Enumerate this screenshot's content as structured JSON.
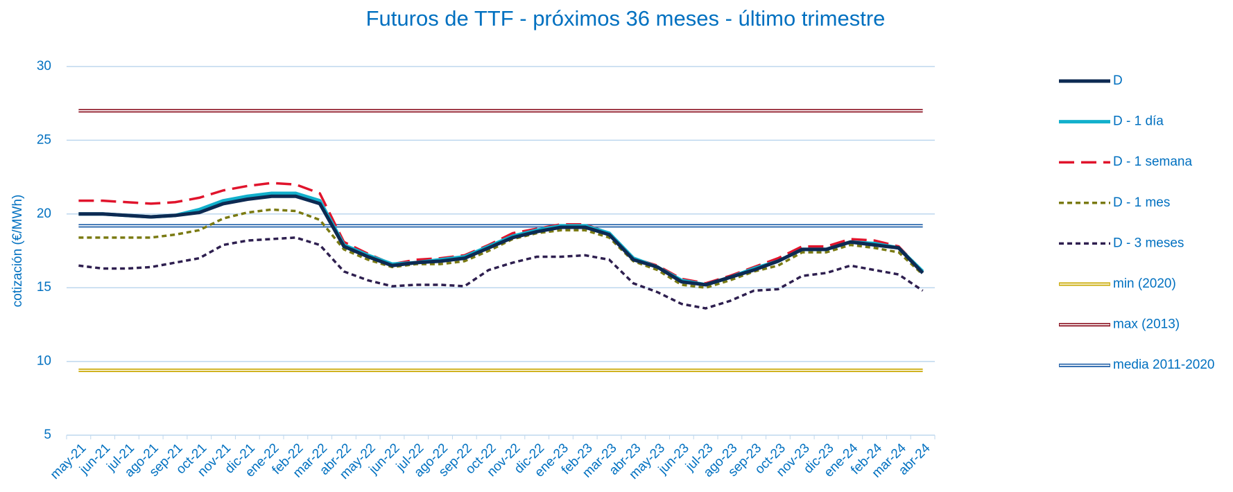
{
  "chart_data": {
    "type": "line",
    "title": "Futuros de TTF - próximos 36 meses - último trimestre",
    "y_label": "cotización (€/MWh)",
    "categories": [
      "may-21",
      "jun-21",
      "jul-21",
      "ago-21",
      "sep-21",
      "oct-21",
      "nov-21",
      "dic-21",
      "ene-22",
      "feb-22",
      "mar-22",
      "abr-22",
      "may-22",
      "jun-22",
      "jul-22",
      "ago-22",
      "sep-22",
      "oct-22",
      "nov-22",
      "dic-22",
      "ene-23",
      "feb-23",
      "mar-23",
      "abr-23",
      "may-23",
      "jun-23",
      "jul-23",
      "ago-23",
      "sep-23",
      "oct-23",
      "nov-23",
      "dic-23",
      "ene-24",
      "feb-24",
      "mar-24",
      "abr-24"
    ],
    "series": [
      {
        "name": "D",
        "color": "#0d2a52",
        "width": 5,
        "dash": "none",
        "values": [
          20.0,
          20.0,
          19.9,
          19.8,
          19.9,
          20.1,
          20.7,
          21.0,
          21.2,
          21.2,
          20.7,
          17.8,
          17.1,
          16.5,
          16.7,
          16.8,
          17.0,
          17.7,
          18.4,
          18.8,
          19.1,
          19.1,
          18.6,
          16.9,
          16.4,
          15.4,
          15.2,
          15.7,
          16.2,
          16.8,
          17.6,
          17.6,
          18.1,
          17.9,
          17.7,
          16.0
        ]
      },
      {
        "name": "D - 1 día",
        "color": "#12b0cc",
        "width": 5,
        "dash": "none",
        "values": [
          20.0,
          20.0,
          19.9,
          19.8,
          19.9,
          20.3,
          20.9,
          21.2,
          21.4,
          21.4,
          20.9,
          17.9,
          17.2,
          16.6,
          16.7,
          16.9,
          17.1,
          17.8,
          18.5,
          18.9,
          19.2,
          19.2,
          18.7,
          17.0,
          16.4,
          15.5,
          15.2,
          15.7,
          16.3,
          16.8,
          17.6,
          17.6,
          18.1,
          18.0,
          17.7,
          16.1
        ]
      },
      {
        "name": "D - 1 semana",
        "color": "#e0142c",
        "width": 3.5,
        "dash": "22 10",
        "values": [
          20.9,
          20.9,
          20.8,
          20.7,
          20.8,
          21.1,
          21.6,
          21.9,
          22.1,
          22.0,
          21.4,
          18.1,
          17.3,
          16.6,
          16.9,
          17.0,
          17.2,
          17.9,
          18.7,
          19.0,
          19.3,
          19.3,
          18.7,
          17.0,
          16.5,
          15.6,
          15.3,
          15.8,
          16.4,
          17.0,
          17.8,
          17.8,
          18.3,
          18.2,
          17.8,
          16.1
        ]
      },
      {
        "name": "D - 1 mes",
        "color": "#7a7a12",
        "width": 3.5,
        "dash": "7 5",
        "values": [
          18.4,
          18.4,
          18.4,
          18.4,
          18.6,
          18.9,
          19.7,
          20.1,
          20.3,
          20.2,
          19.6,
          17.6,
          16.9,
          16.4,
          16.6,
          16.6,
          16.8,
          17.5,
          18.3,
          18.7,
          18.9,
          18.9,
          18.4,
          16.8,
          16.2,
          15.2,
          15.0,
          15.5,
          16.1,
          16.5,
          17.4,
          17.4,
          17.9,
          17.7,
          17.4,
          15.9
        ]
      },
      {
        "name": "D - 3 meses",
        "color": "#2e1f4f",
        "width": 3.5,
        "dash": "7 5",
        "values": [
          16.5,
          16.3,
          16.3,
          16.4,
          16.7,
          17.0,
          17.9,
          18.2,
          18.3,
          18.4,
          17.9,
          16.1,
          15.5,
          15.1,
          15.2,
          15.2,
          15.1,
          16.2,
          16.7,
          17.1,
          17.1,
          17.2,
          16.9,
          15.3,
          14.7,
          13.9,
          13.6,
          14.1,
          14.8,
          14.9,
          15.8,
          16.0,
          16.5,
          16.2,
          15.9,
          14.8
        ]
      }
    ],
    "reference_lines": [
      {
        "name": "min (2020)",
        "color": "#c9a800",
        "value": 9.4
      },
      {
        "name": "max (2013)",
        "color": "#8b1020",
        "value": 27.0
      },
      {
        "name": "media 2011-2020",
        "color": "#1f5fa8",
        "value": 19.2
      }
    ],
    "ylim": [
      5,
      30
    ],
    "yticks": [
      5,
      10,
      15,
      20,
      25,
      30
    ],
    "grid": true
  }
}
